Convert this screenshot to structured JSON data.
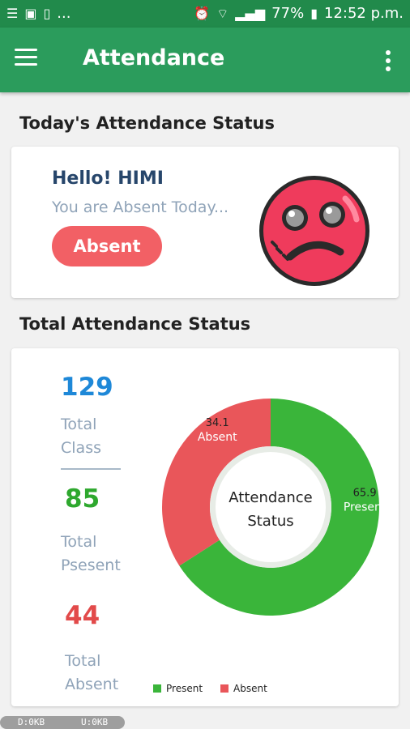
{
  "status_bar": {
    "time": "12:52 p.m.",
    "battery": "77%",
    "left_icons": [
      "list-icon",
      "photo-icon",
      "sim-icon"
    ],
    "more": "...",
    "right_icons": [
      "alarm-icon",
      "wifi-icon",
      "signal-icon",
      "battery-icon"
    ]
  },
  "app_bar": {
    "title": "Attendance"
  },
  "today": {
    "section_title": "Today's Attendance Status",
    "greeting": "Hello! HIMI",
    "message": "You are Absent Today...",
    "status_button": "Absent"
  },
  "total": {
    "section_title": "Total Attendance Status",
    "total_class_value": "129",
    "total_class_label_line1": "Total",
    "total_class_label_line2": "Class",
    "total_present_value": "85",
    "total_present_label_line1": "Total",
    "total_present_label_line2": "Psesent",
    "total_absent_value": "44",
    "total_absent_label_line1": "Total",
    "total_absent_label_line2": "Absent"
  },
  "colors": {
    "header": "#2b9c5c",
    "present": "#3ab53a",
    "absent": "#e9565a",
    "blue_value": "#1e88d8",
    "green_value": "#2ea82e",
    "red_value": "#e24a4a"
  },
  "chart_data": {
    "type": "pie",
    "center_label_line1": "Attendance",
    "center_label_line2": "Status",
    "slices": [
      {
        "name": "Present",
        "value": 65.9,
        "label": "65.9"
      },
      {
        "name": "Absent",
        "value": 34.1,
        "label": "34.1"
      }
    ],
    "legend": [
      "Present",
      "Absent"
    ],
    "legend_position": "bottom"
  },
  "bottom_bar": {
    "download": "D:0KB",
    "upload": "U:0KB"
  }
}
